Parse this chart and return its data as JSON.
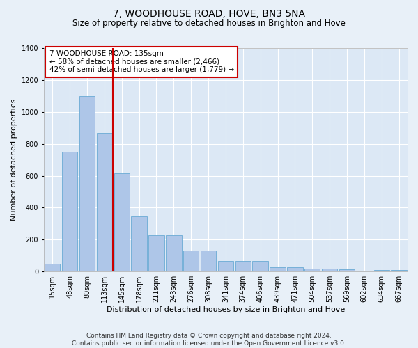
{
  "title": "7, WOODHOUSE ROAD, HOVE, BN3 5NA",
  "subtitle": "Size of property relative to detached houses in Brighton and Hove",
  "xlabel": "Distribution of detached houses by size in Brighton and Hove",
  "ylabel": "Number of detached properties",
  "footer_line1": "Contains HM Land Registry data © Crown copyright and database right 2024.",
  "footer_line2": "Contains public sector information licensed under the Open Government Licence v3.0.",
  "annotation_line1": "7 WOODHOUSE ROAD: 135sqm",
  "annotation_line2": "← 58% of detached houses are smaller (2,466)",
  "annotation_line3": "42% of semi-detached houses are larger (1,779) →",
  "categories": [
    "15sqm",
    "48sqm",
    "80sqm",
    "113sqm",
    "145sqm",
    "178sqm",
    "211sqm",
    "243sqm",
    "276sqm",
    "308sqm",
    "341sqm",
    "374sqm",
    "406sqm",
    "439sqm",
    "471sqm",
    "504sqm",
    "537sqm",
    "569sqm",
    "602sqm",
    "634sqm",
    "667sqm"
  ],
  "values": [
    47,
    750,
    1100,
    870,
    615,
    345,
    228,
    228,
    133,
    133,
    65,
    68,
    68,
    28,
    28,
    20,
    18,
    13,
    0,
    10,
    10
  ],
  "bar_color": "#aec6e8",
  "bar_edge_color": "#6aaad4",
  "vline_color": "#cc0000",
  "vline_pos": 3.5,
  "ylim": [
    0,
    1400
  ],
  "yticks": [
    0,
    200,
    400,
    600,
    800,
    1000,
    1200,
    1400
  ],
  "background_color": "#e8f0f8",
  "plot_bg_color": "#dce8f5",
  "grid_color": "#ffffff",
  "annotation_box_color": "#ffffff",
  "annotation_box_edge": "#cc0000",
  "title_fontsize": 10,
  "subtitle_fontsize": 8.5,
  "xlabel_fontsize": 8,
  "ylabel_fontsize": 8,
  "tick_fontsize": 7,
  "annotation_fontsize": 7.5,
  "footer_fontsize": 6.5
}
